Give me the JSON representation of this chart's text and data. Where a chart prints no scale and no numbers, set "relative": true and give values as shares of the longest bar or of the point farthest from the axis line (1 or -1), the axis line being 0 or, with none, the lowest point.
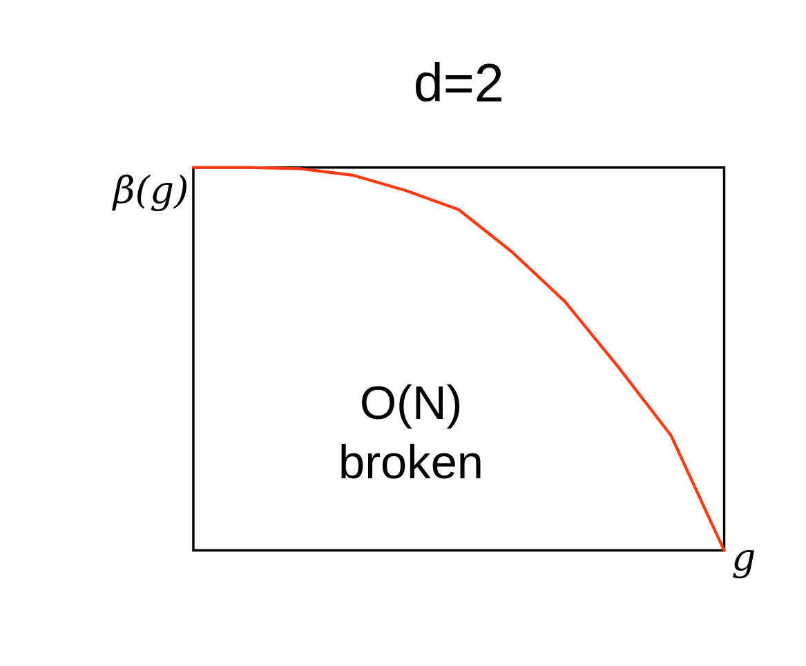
{
  "chart_data": {
    "type": "line",
    "title": "d=2",
    "xlabel": "g",
    "ylabel": "β(g)",
    "annotations": [
      "O(N) broken"
    ],
    "categories": [
      null,
      null,
      null,
      null,
      null,
      null,
      null,
      null,
      null,
      null,
      null
    ],
    "relative": true,
    "series": [
      {
        "color": "#ff3b14",
        "values": [
          1.0,
          1.0,
          0.997,
          0.98,
          0.94,
          0.89,
          0.78,
          0.65,
          0.48,
          0.3,
          0.0
        ]
      }
    ],
    "grid": false
  }
}
